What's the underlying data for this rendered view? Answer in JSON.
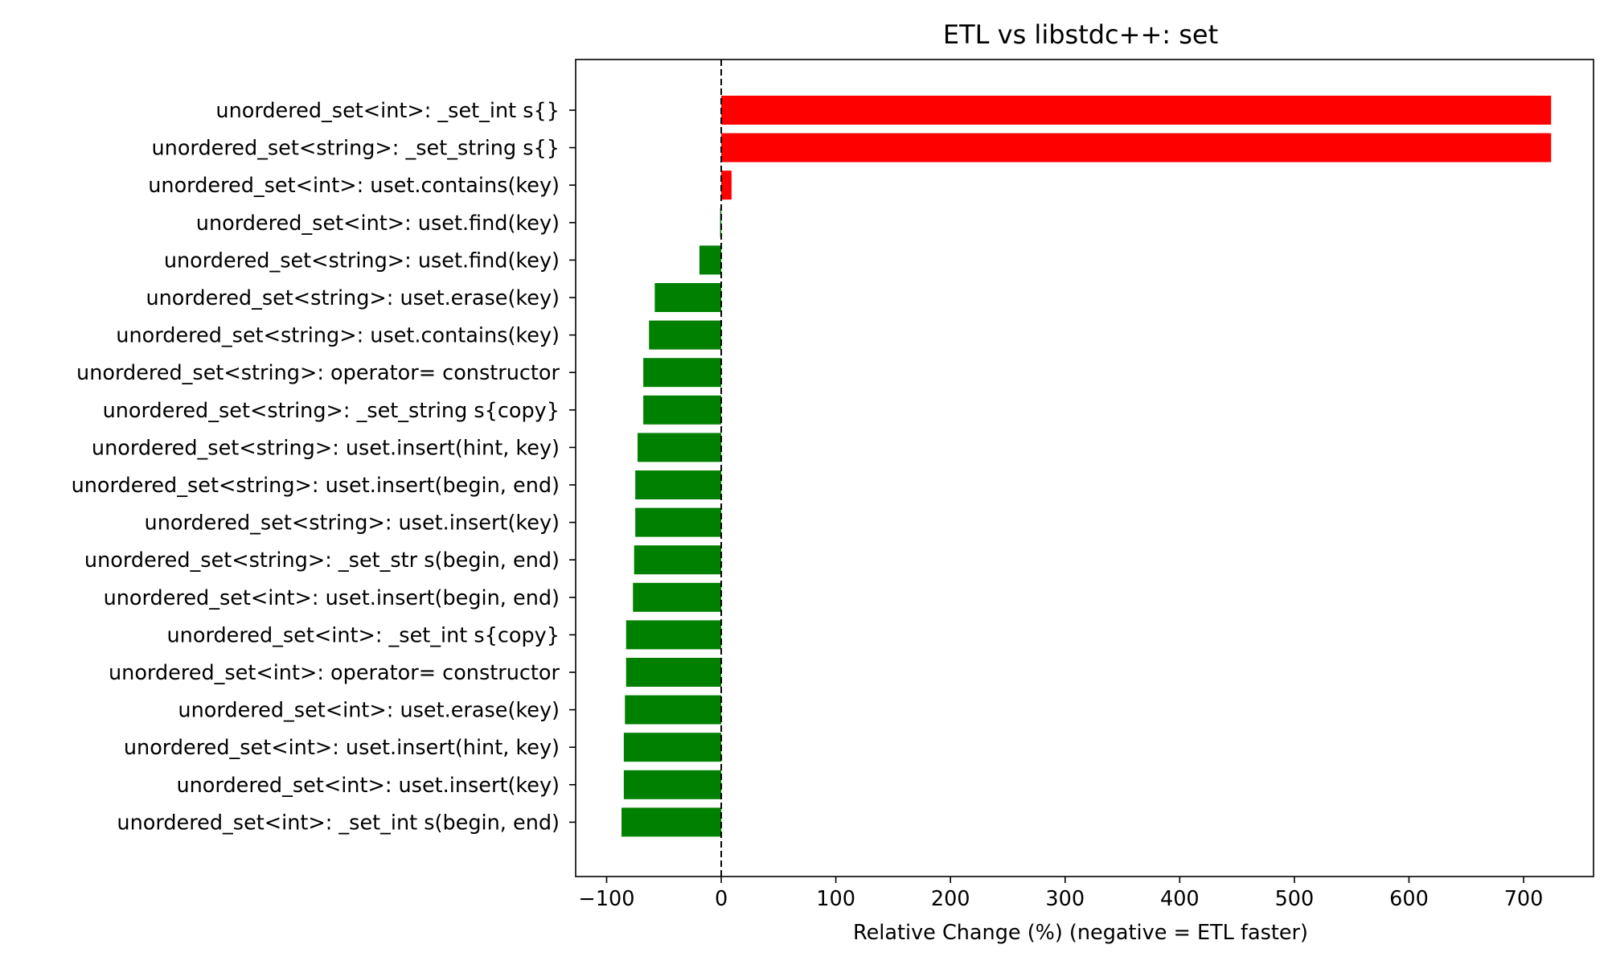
{
  "chart_data": {
    "type": "bar",
    "orientation": "horizontal",
    "title": "ETL vs libstdc++: set",
    "xlabel": "Relative Change (%)  (negative = ETL faster)",
    "ylabel": "",
    "xlim": [
      -127,
      761
    ],
    "xticks": [
      -100,
      0,
      100,
      200,
      300,
      400,
      500,
      600,
      700
    ],
    "xtick_labels": [
      "−100",
      "0",
      "100",
      "200",
      "300",
      "400",
      "500",
      "600",
      "700"
    ],
    "reference_line": {
      "x": 0,
      "style": "dashed",
      "color": "#000000"
    },
    "colors": {
      "positive": "#ff0000",
      "negative": "#008000"
    },
    "grid": false,
    "categories": [
      "unordered_set<int>: _set_int s{}",
      "unordered_set<string>: _set_string s{}",
      "unordered_set<int>: uset.contains(key)",
      "unordered_set<int>: uset.find(key)",
      "unordered_set<string>: uset.find(key)",
      "unordered_set<string>: uset.erase(key)",
      "unordered_set<string>: uset.contains(key)",
      "unordered_set<string>: operator= constructor",
      "unordered_set<string>: _set_string s{copy}",
      "unordered_set<string>: uset.insert(hint, key)",
      "unordered_set<string>: uset.insert(begin, end)",
      "unordered_set<string>: uset.insert(key)",
      "unordered_set<string>: _set_str s(begin, end)",
      "unordered_set<int>: uset.insert(begin, end)",
      "unordered_set<int>: _set_int s{copy}",
      "unordered_set<int>: operator= constructor",
      "unordered_set<int>: uset.erase(key)",
      "unordered_set<int>: uset.insert(hint, key)",
      "unordered_set<int>: uset.insert(key)",
      "unordered_set<int>: _set_int s(begin, end)"
    ],
    "values": [
      724,
      724,
      9,
      -1,
      -19,
      -58,
      -63,
      -68,
      -68,
      -73,
      -75,
      -75,
      -76,
      -77,
      -83,
      -83,
      -84,
      -85,
      -85,
      -87
    ]
  }
}
